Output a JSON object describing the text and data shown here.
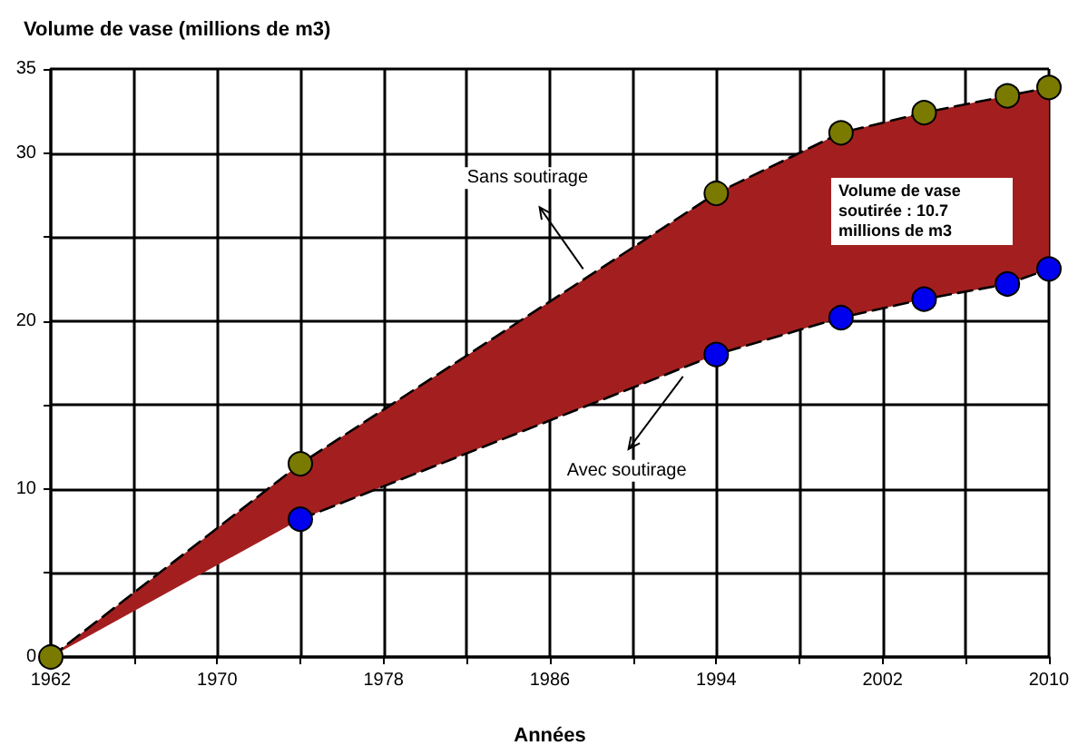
{
  "chart_data": {
    "type": "line",
    "title": "Volume de vase (millions de m3)",
    "xlabel": "Années",
    "x": [
      1962,
      1974,
      1994,
      2000,
      2004,
      2008,
      2010
    ],
    "series": [
      {
        "color": "#7a7a00",
        "values": [
          0,
          11.5,
          27.6,
          31.2,
          32.4,
          33.4,
          33.9
        ],
        "lower": [
          0,
          8.2,
          18.0,
          20.2,
          21.3,
          22.2,
          23.1
        ],
        "upper": [
          0,
          11.5,
          27.6,
          31.2,
          32.4,
          33.4,
          33.9
        ]
      },
      {
        "color": "#0000ee",
        "x": [
          1974,
          1994,
          2000,
          2004,
          2008,
          2010
        ],
        "values": [
          8.2,
          18.0,
          20.2,
          21.3,
          22.2,
          23.1
        ]
      }
    ],
    "annotations": [
      {
        "text": "Sans soutirage",
        "x": 1987.6,
        "y": 23.1
      },
      {
        "text": "Avec soutirage",
        "x": 1992.4,
        "y": 16.7
      },
      "Volume de vase soutirée : 10.7 millions de m3"
    ],
    "xlim": [
      1962,
      2010
    ],
    "xticks": [
      1962,
      {
        "value": 1966,
        "label": null
      },
      1970,
      {
        "value": 1974,
        "label": null
      },
      1978,
      {
        "value": 1982,
        "label": null
      },
      1986,
      {
        "value": 1990,
        "label": null
      },
      1994,
      {
        "value": 1998,
        "label": null
      },
      2002,
      {
        "value": 2006,
        "label": null
      },
      2010
    ],
    "ylim": [
      0,
      35
    ],
    "yticks": [
      0,
      {
        "value": 5,
        "label": null
      },
      10,
      {
        "value": 15,
        "label": null
      },
      20,
      {
        "value": 25,
        "label": null
      },
      30,
      35
    ],
    "grid": true,
    "marker": "circle",
    "line_style": "dashed"
  }
}
